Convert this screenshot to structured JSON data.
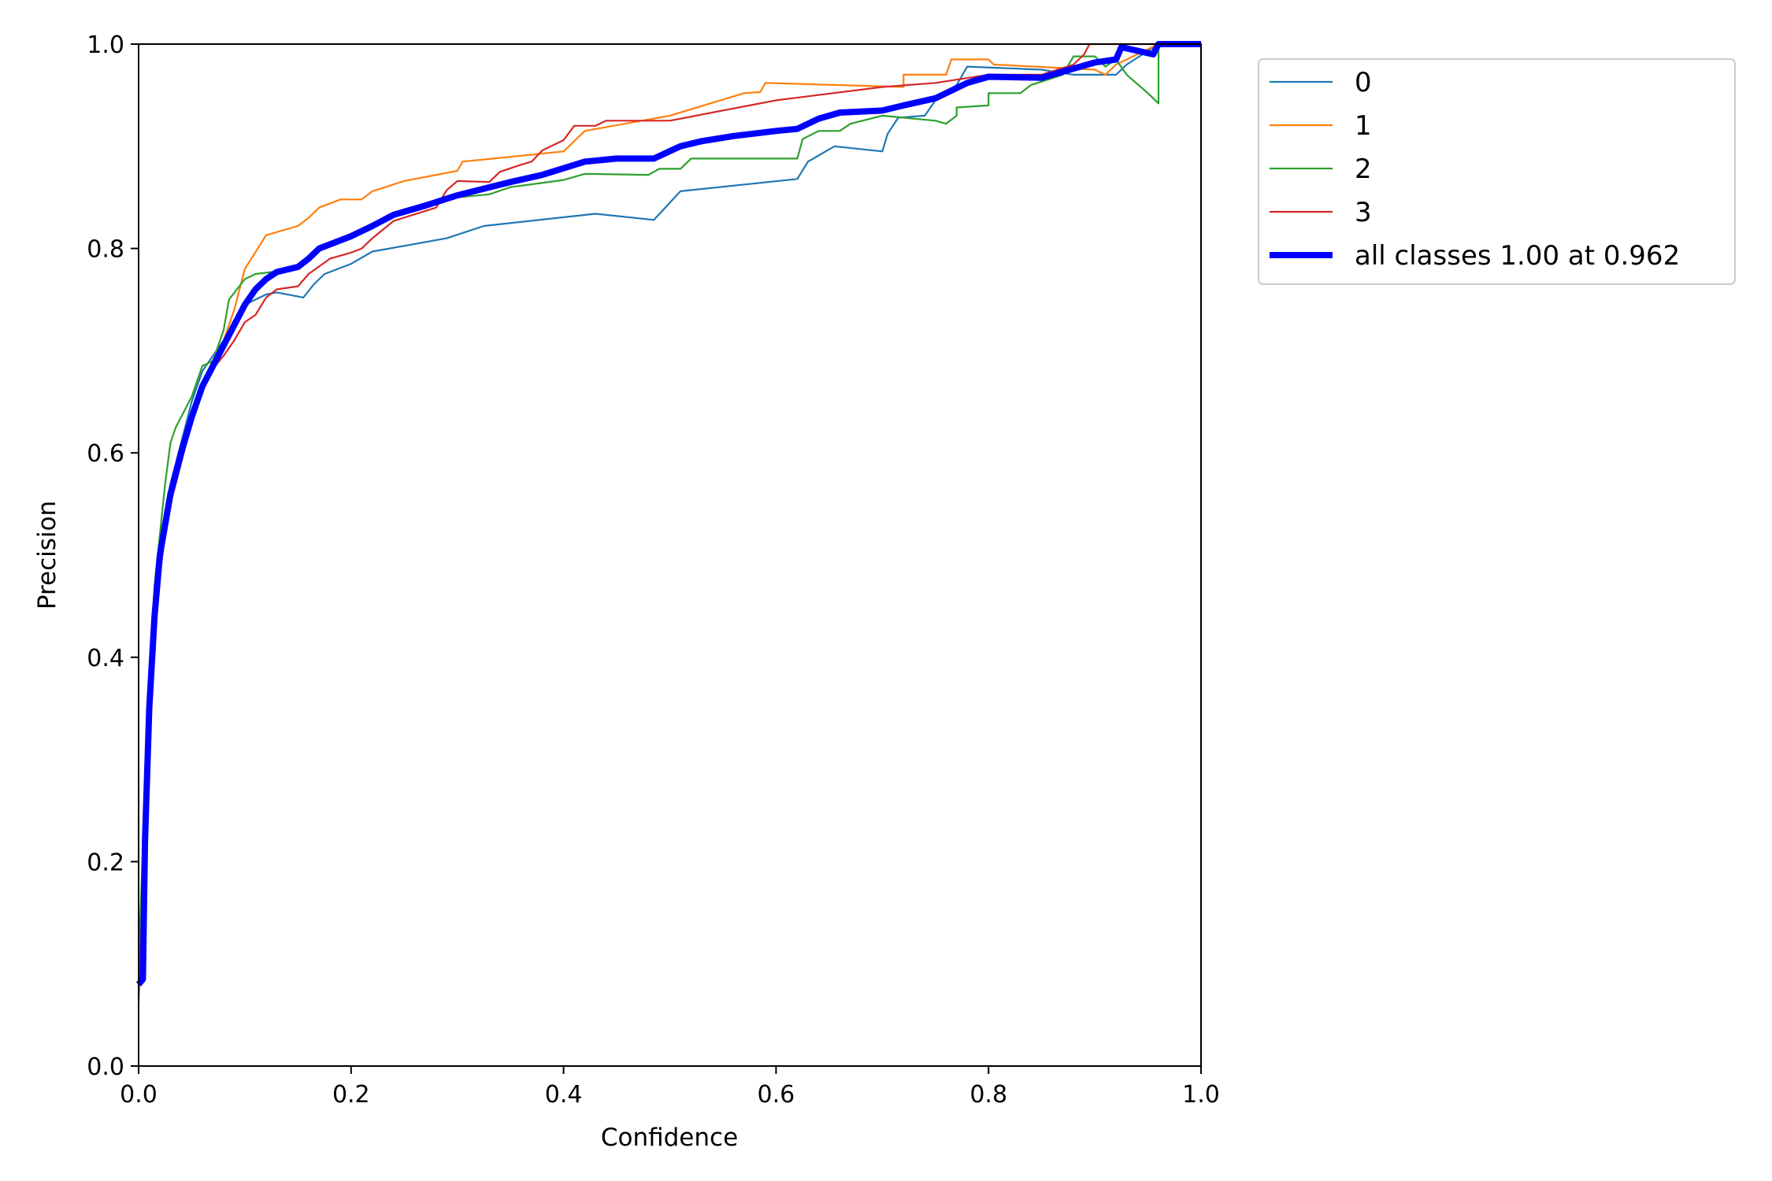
{
  "chart_data": {
    "type": "line",
    "title": "",
    "xlabel": "Confidence",
    "ylabel": "Precision",
    "xlim": [
      0,
      1
    ],
    "ylim": [
      0,
      1
    ],
    "xticks": [
      "0.0",
      "0.2",
      "0.4",
      "0.6",
      "0.8",
      "1.0"
    ],
    "yticks": [
      "0.0",
      "0.2",
      "0.4",
      "0.6",
      "0.8",
      "1.0"
    ],
    "grid": false,
    "legend_position": "outside-top-right",
    "series": [
      {
        "name": "0",
        "color": "#1f77b4",
        "points": [
          [
            0.0,
            0.08
          ],
          [
            0.005,
            0.22
          ],
          [
            0.01,
            0.36
          ],
          [
            0.015,
            0.45
          ],
          [
            0.02,
            0.51
          ],
          [
            0.03,
            0.57
          ],
          [
            0.04,
            0.61
          ],
          [
            0.05,
            0.65
          ],
          [
            0.06,
            0.68
          ],
          [
            0.08,
            0.71
          ],
          [
            0.09,
            0.73
          ],
          [
            0.1,
            0.745
          ],
          [
            0.12,
            0.755
          ],
          [
            0.13,
            0.757
          ],
          [
            0.155,
            0.752
          ],
          [
            0.165,
            0.765
          ],
          [
            0.175,
            0.775
          ],
          [
            0.2,
            0.785
          ],
          [
            0.22,
            0.797
          ],
          [
            0.29,
            0.81
          ],
          [
            0.325,
            0.822
          ],
          [
            0.43,
            0.834
          ],
          [
            0.485,
            0.828
          ],
          [
            0.51,
            0.856
          ],
          [
            0.62,
            0.868
          ],
          [
            0.63,
            0.885
          ],
          [
            0.655,
            0.9
          ],
          [
            0.7,
            0.895
          ],
          [
            0.705,
            0.912
          ],
          [
            0.715,
            0.928
          ],
          [
            0.74,
            0.93
          ],
          [
            0.75,
            0.945
          ],
          [
            0.77,
            0.96
          ],
          [
            0.78,
            0.978
          ],
          [
            0.85,
            0.975
          ],
          [
            0.88,
            0.97
          ],
          [
            0.92,
            0.97
          ],
          [
            0.93,
            0.98
          ],
          [
            0.96,
            1.0
          ],
          [
            1.0,
            1.0
          ]
        ]
      },
      {
        "name": "1",
        "color": "#ff7f0e",
        "points": [
          [
            0.0,
            0.06
          ],
          [
            0.005,
            0.2
          ],
          [
            0.01,
            0.33
          ],
          [
            0.015,
            0.42
          ],
          [
            0.02,
            0.48
          ],
          [
            0.03,
            0.56
          ],
          [
            0.04,
            0.6
          ],
          [
            0.05,
            0.64
          ],
          [
            0.06,
            0.67
          ],
          [
            0.07,
            0.68
          ],
          [
            0.08,
            0.71
          ],
          [
            0.09,
            0.74
          ],
          [
            0.1,
            0.78
          ],
          [
            0.12,
            0.813
          ],
          [
            0.15,
            0.822
          ],
          [
            0.16,
            0.83
          ],
          [
            0.17,
            0.84
          ],
          [
            0.19,
            0.848
          ],
          [
            0.21,
            0.848
          ],
          [
            0.22,
            0.856
          ],
          [
            0.25,
            0.866
          ],
          [
            0.3,
            0.876
          ],
          [
            0.305,
            0.885
          ],
          [
            0.4,
            0.895
          ],
          [
            0.41,
            0.905
          ],
          [
            0.42,
            0.915
          ],
          [
            0.5,
            0.93
          ],
          [
            0.57,
            0.952
          ],
          [
            0.585,
            0.953
          ],
          [
            0.59,
            0.962
          ],
          [
            0.72,
            0.958
          ],
          [
            0.72,
            0.97
          ],
          [
            0.76,
            0.97
          ],
          [
            0.765,
            0.985
          ],
          [
            0.8,
            0.985
          ],
          [
            0.805,
            0.98
          ],
          [
            0.9,
            0.975
          ],
          [
            0.91,
            0.97
          ],
          [
            0.92,
            0.98
          ],
          [
            0.93,
            0.985
          ],
          [
            0.96,
            1.0
          ],
          [
            1.0,
            1.0
          ]
        ]
      },
      {
        "name": "2",
        "color": "#2ca02c",
        "points": [
          [
            0.0,
            0.1
          ],
          [
            0.005,
            0.24
          ],
          [
            0.01,
            0.38
          ],
          [
            0.015,
            0.47
          ],
          [
            0.02,
            0.52
          ],
          [
            0.025,
            0.57
          ],
          [
            0.03,
            0.61
          ],
          [
            0.035,
            0.625
          ],
          [
            0.05,
            0.655
          ],
          [
            0.06,
            0.685
          ],
          [
            0.07,
            0.69
          ],
          [
            0.08,
            0.72
          ],
          [
            0.085,
            0.75
          ],
          [
            0.1,
            0.77
          ],
          [
            0.11,
            0.775
          ],
          [
            0.15,
            0.78
          ],
          [
            0.17,
            0.8
          ],
          [
            0.2,
            0.812
          ],
          [
            0.23,
            0.825
          ],
          [
            0.24,
            0.833
          ],
          [
            0.3,
            0.85
          ],
          [
            0.33,
            0.853
          ],
          [
            0.35,
            0.86
          ],
          [
            0.4,
            0.867
          ],
          [
            0.42,
            0.873
          ],
          [
            0.48,
            0.872
          ],
          [
            0.49,
            0.878
          ],
          [
            0.51,
            0.878
          ],
          [
            0.52,
            0.888
          ],
          [
            0.56,
            0.888
          ],
          [
            0.62,
            0.888
          ],
          [
            0.625,
            0.907
          ],
          [
            0.64,
            0.915
          ],
          [
            0.66,
            0.915
          ],
          [
            0.67,
            0.922
          ],
          [
            0.7,
            0.93
          ],
          [
            0.75,
            0.925
          ],
          [
            0.76,
            0.922
          ],
          [
            0.77,
            0.93
          ],
          [
            0.77,
            0.938
          ],
          [
            0.8,
            0.94
          ],
          [
            0.8,
            0.952
          ],
          [
            0.83,
            0.952
          ],
          [
            0.84,
            0.96
          ],
          [
            0.87,
            0.97
          ],
          [
            0.88,
            0.988
          ],
          [
            0.9,
            0.988
          ],
          [
            0.91,
            0.978
          ],
          [
            0.92,
            0.985
          ],
          [
            0.93,
            0.97
          ],
          [
            0.95,
            0.952
          ],
          [
            0.96,
            0.942
          ],
          [
            0.96,
            1.0
          ],
          [
            1.0,
            1.0
          ]
        ]
      },
      {
        "name": "3",
        "color": "#d62728",
        "points": [
          [
            0.0,
            0.07
          ],
          [
            0.005,
            0.2
          ],
          [
            0.01,
            0.34
          ],
          [
            0.015,
            0.43
          ],
          [
            0.02,
            0.49
          ],
          [
            0.03,
            0.55
          ],
          [
            0.04,
            0.59
          ],
          [
            0.05,
            0.63
          ],
          [
            0.06,
            0.67
          ],
          [
            0.08,
            0.695
          ],
          [
            0.09,
            0.71
          ],
          [
            0.1,
            0.728
          ],
          [
            0.11,
            0.735
          ],
          [
            0.12,
            0.752
          ],
          [
            0.13,
            0.76
          ],
          [
            0.15,
            0.763
          ],
          [
            0.16,
            0.775
          ],
          [
            0.18,
            0.79
          ],
          [
            0.2,
            0.796
          ],
          [
            0.21,
            0.8
          ],
          [
            0.22,
            0.81
          ],
          [
            0.24,
            0.827
          ],
          [
            0.28,
            0.84
          ],
          [
            0.29,
            0.857
          ],
          [
            0.3,
            0.866
          ],
          [
            0.33,
            0.865
          ],
          [
            0.34,
            0.875
          ],
          [
            0.36,
            0.882
          ],
          [
            0.37,
            0.885
          ],
          [
            0.38,
            0.896
          ],
          [
            0.4,
            0.906
          ],
          [
            0.41,
            0.92
          ],
          [
            0.43,
            0.92
          ],
          [
            0.44,
            0.925
          ],
          [
            0.5,
            0.925
          ],
          [
            0.6,
            0.945
          ],
          [
            0.7,
            0.958
          ],
          [
            0.75,
            0.962
          ],
          [
            0.8,
            0.97
          ],
          [
            0.85,
            0.97
          ],
          [
            0.88,
            0.98
          ],
          [
            0.89,
            0.99
          ],
          [
            0.895,
            1.0
          ],
          [
            1.0,
            1.0
          ]
        ]
      },
      {
        "name": "all classes 1.00 at 0.962",
        "color": "#0000ff",
        "points": [
          [
            0.0,
            0.08
          ],
          [
            0.004,
            0.085
          ],
          [
            0.006,
            0.22
          ],
          [
            0.01,
            0.35
          ],
          [
            0.015,
            0.44
          ],
          [
            0.02,
            0.5
          ],
          [
            0.03,
            0.56
          ],
          [
            0.04,
            0.6
          ],
          [
            0.05,
            0.635
          ],
          [
            0.06,
            0.665
          ],
          [
            0.07,
            0.685
          ],
          [
            0.08,
            0.705
          ],
          [
            0.09,
            0.725
          ],
          [
            0.1,
            0.745
          ],
          [
            0.11,
            0.76
          ],
          [
            0.12,
            0.77
          ],
          [
            0.13,
            0.777
          ],
          [
            0.15,
            0.782
          ],
          [
            0.16,
            0.79
          ],
          [
            0.17,
            0.8
          ],
          [
            0.2,
            0.812
          ],
          [
            0.22,
            0.822
          ],
          [
            0.24,
            0.833
          ],
          [
            0.27,
            0.842
          ],
          [
            0.3,
            0.852
          ],
          [
            0.35,
            0.865
          ],
          [
            0.38,
            0.872
          ],
          [
            0.42,
            0.885
          ],
          [
            0.45,
            0.888
          ],
          [
            0.485,
            0.888
          ],
          [
            0.51,
            0.9
          ],
          [
            0.53,
            0.905
          ],
          [
            0.56,
            0.91
          ],
          [
            0.6,
            0.915
          ],
          [
            0.62,
            0.917
          ],
          [
            0.64,
            0.927
          ],
          [
            0.66,
            0.933
          ],
          [
            0.7,
            0.935
          ],
          [
            0.72,
            0.94
          ],
          [
            0.75,
            0.947
          ],
          [
            0.78,
            0.962
          ],
          [
            0.8,
            0.968
          ],
          [
            0.85,
            0.967
          ],
          [
            0.9,
            0.982
          ],
          [
            0.92,
            0.985
          ],
          [
            0.925,
            0.997
          ],
          [
            0.955,
            0.99
          ],
          [
            0.96,
            1.0
          ],
          [
            1.0,
            1.0
          ]
        ]
      }
    ]
  }
}
